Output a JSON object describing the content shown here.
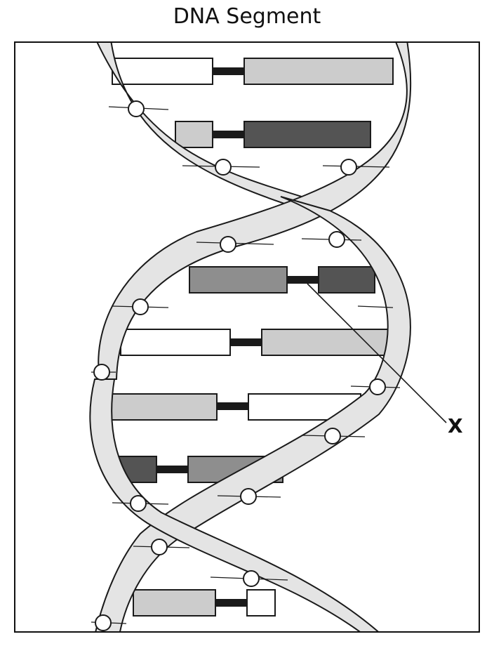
{
  "title": "DNA Segment",
  "pointer_label": "X",
  "colors": {
    "backbone": "#e4e4e4",
    "outline": "#1a1a1a",
    "base_white": "#ffffff",
    "base_light": "#cccccc",
    "base_medium": "#8e8e8e",
    "base_dark": "#545454",
    "bond": "#1a1a1a"
  },
  "base_pairs": [
    {
      "left": "white",
      "right": "light"
    },
    {
      "left": "light",
      "right": "dark"
    },
    {
      "left": "medium",
      "right": "dark"
    },
    {
      "left": "white",
      "right": "light"
    },
    {
      "left": "light",
      "right": "white"
    },
    {
      "left": "dark",
      "right": "medium"
    },
    {
      "left": "light",
      "right": "white"
    }
  ]
}
